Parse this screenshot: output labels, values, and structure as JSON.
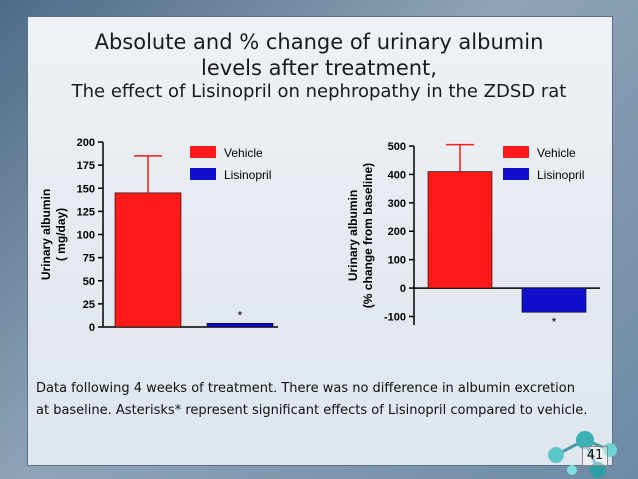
{
  "slide": {
    "title_line1": "Absolute and % change of urinary albumin",
    "title_line2": "levels after treatment,",
    "subtitle": "The effect of Lisinopril on nephropathy in the ZDSD rat",
    "note_line1": "Data following 4 weeks of treatment.  There was no difference in albumin excretion",
    "note_line2": "at baseline. Asterisks* represent significant effects of Lisinopril compared to vehicle.",
    "page_number": "41"
  },
  "colors": {
    "vehicle": "#ff1a1a",
    "lisinopril": "#1010cc"
  },
  "chart_data": [
    {
      "type": "bar",
      "categories": [
        "Vehicle",
        "Lisinopril"
      ],
      "series": [
        {
          "name": "Vehicle",
          "values": [
            145,
            null
          ],
          "error": [
            40,
            null
          ]
        },
        {
          "name": "Lisinopril",
          "values": [
            null,
            4
          ],
          "error": [
            null,
            0
          ]
        }
      ],
      "ylabel_line1": "Urinary albumin",
      "ylabel_line2": "( mg/day)",
      "ylim": [
        0,
        200
      ],
      "yticks": [
        0,
        25,
        50,
        75,
        100,
        125,
        150,
        175,
        200
      ],
      "annotations": [
        {
          "category": "Lisinopril",
          "text": "*"
        }
      ],
      "legend": [
        "Vehicle",
        "Lisinopril"
      ],
      "legend_position": "top-right"
    },
    {
      "type": "bar",
      "categories": [
        "Vehicle",
        "Lisinopril"
      ],
      "series": [
        {
          "name": "Vehicle",
          "values": [
            410,
            null
          ],
          "error": [
            95,
            null
          ]
        },
        {
          "name": "Lisinopril",
          "values": [
            null,
            -85
          ],
          "error": [
            null,
            0
          ]
        }
      ],
      "ylabel_line1": "Urinary albumin",
      "ylabel_line2": "(% change from baseline)",
      "ylim": [
        -130,
        500
      ],
      "yticks": [
        -100,
        0,
        100,
        200,
        300,
        400,
        500
      ],
      "annotations": [
        {
          "category": "Lisinopril",
          "text": "*"
        }
      ],
      "legend": [
        "Vehicle",
        "Lisinopril"
      ],
      "legend_position": "top-right"
    }
  ]
}
